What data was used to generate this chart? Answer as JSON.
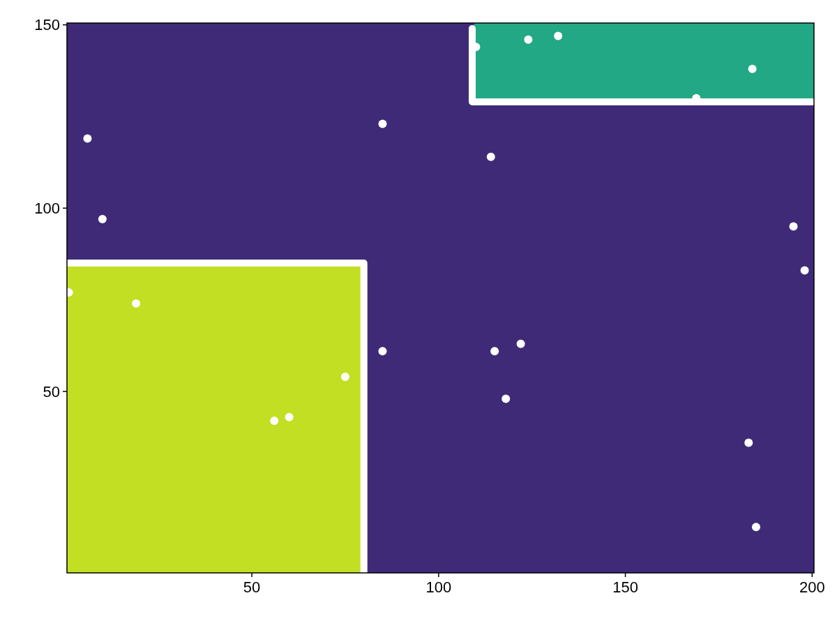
{
  "chart_data": {
    "type": "scatter",
    "xlim": [
      0.5,
      200.5
    ],
    "ylim": [
      0.5,
      150.5
    ],
    "xticks": [
      50,
      100,
      150,
      200
    ],
    "yticks": [
      50,
      100,
      150
    ],
    "grid": false,
    "series": [
      {
        "type": "line",
        "color": "#ffffff",
        "x": [
          0.5,
          80,
          80
        ],
        "values": [
          85,
          85,
          0.5
        ]
      },
      {
        "type": "line",
        "color": "#ffffff",
        "x": [
          109,
          109,
          200
        ],
        "values": [
          149,
          129,
          129
        ]
      },
      {
        "color": "#ffffff",
        "marker": "circle",
        "x": [
          1,
          6,
          10,
          19,
          56,
          60,
          75,
          85,
          85,
          110,
          114,
          115,
          118,
          122,
          124,
          132,
          169,
          184,
          183,
          185,
          195,
          198
        ],
        "values": [
          77,
          119,
          97,
          74,
          42,
          43,
          54,
          123,
          61,
          144,
          114,
          61,
          48,
          63,
          146,
          147,
          130,
          138,
          36,
          13,
          95,
          83
        ]
      }
    ]
  }
}
